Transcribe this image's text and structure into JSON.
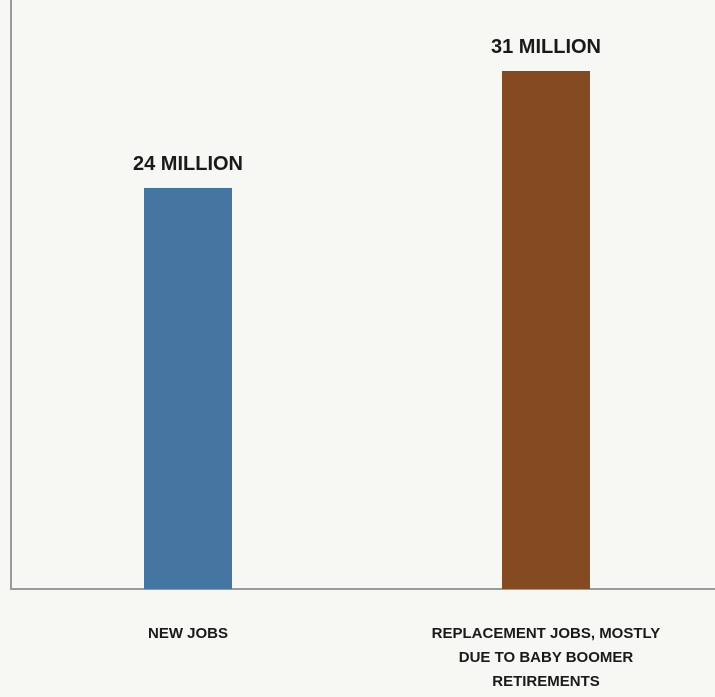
{
  "chart_data": {
    "type": "bar",
    "categories": [
      [
        "NEW JOBS"
      ],
      [
        "REPLACEMENT JOBS, MOSTLY",
        "DUE TO BABY BOOMER",
        "RETIREMENTS"
      ]
    ],
    "values": [
      24,
      31
    ],
    "data_labels": [
      "24 MILLION",
      "31 MILLION"
    ],
    "unit": "MILLION",
    "colors": [
      "#4575a1",
      "#844a21"
    ],
    "title": "",
    "xlabel": "",
    "ylabel": "",
    "ylim": [
      0,
      35
    ],
    "grid": false,
    "legend": "none"
  }
}
